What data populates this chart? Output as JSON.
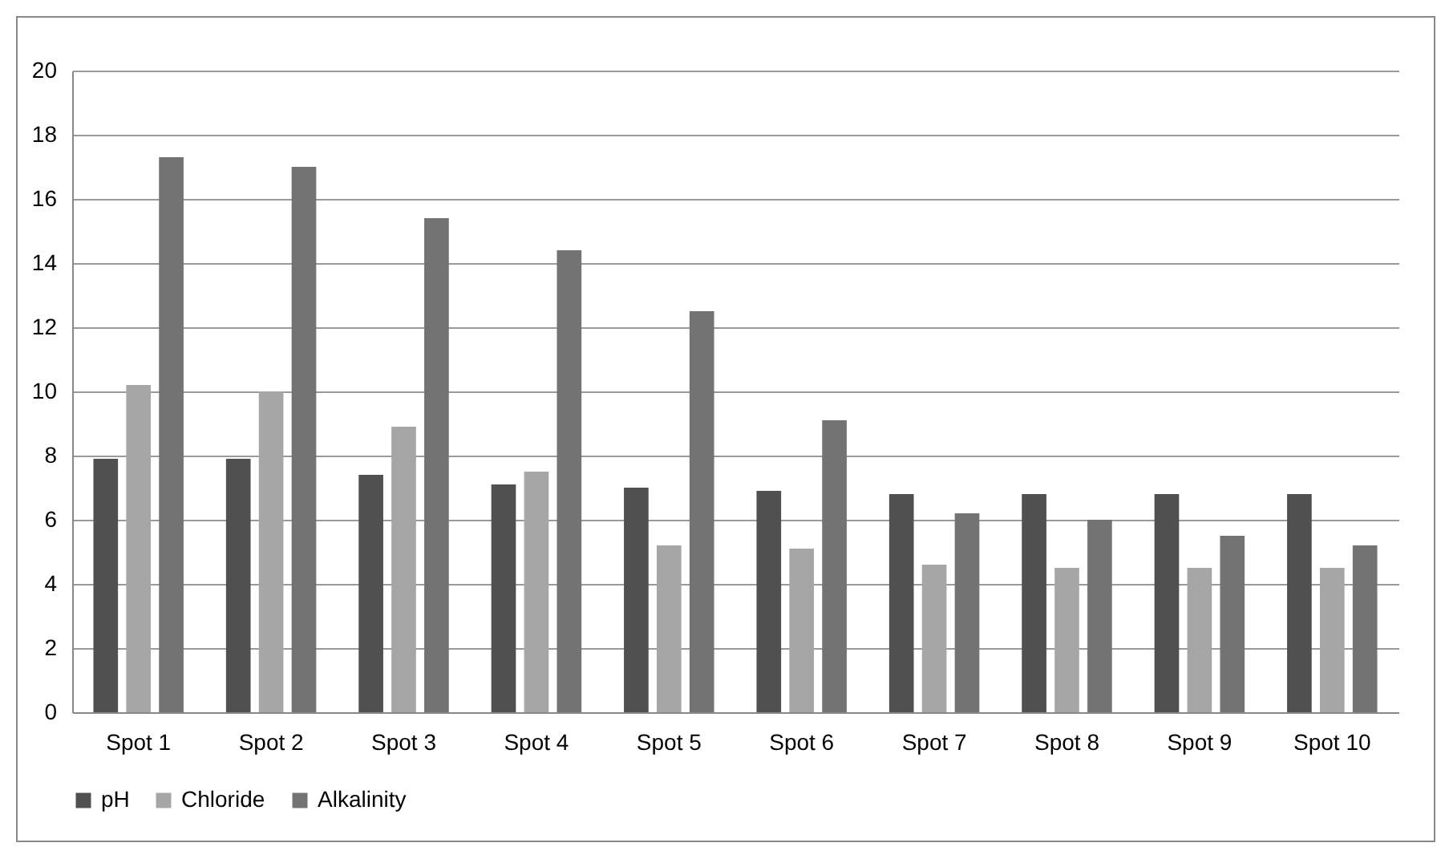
{
  "chart_data": {
    "type": "bar",
    "categories": [
      "Spot 1",
      "Spot 2",
      "Spot 3",
      "Spot 4",
      "Spot 5",
      "Spot 6",
      "Spot 7",
      "Spot 8",
      "Spot 9",
      "Spot 10"
    ],
    "series": [
      {
        "name": "pH",
        "color": "#505050",
        "values": [
          7.9,
          7.9,
          7.4,
          7.1,
          7.0,
          6.9,
          6.8,
          6.8,
          6.8,
          6.8
        ]
      },
      {
        "name": "Chloride",
        "color": "#a6a6a6",
        "values": [
          10.2,
          10.0,
          8.9,
          7.5,
          5.2,
          5.1,
          4.6,
          4.5,
          4.5,
          4.5
        ]
      },
      {
        "name": "Alkalinity",
        "color": "#737373",
        "values": [
          17.3,
          17.0,
          15.4,
          14.4,
          12.5,
          9.1,
          6.2,
          6.0,
          5.5,
          5.2
        ]
      }
    ],
    "ylim": [
      0,
      20
    ],
    "yticks": [
      0,
      2,
      4,
      6,
      8,
      10,
      12,
      14,
      16,
      18,
      20
    ],
    "grid": "y",
    "legend": "bottom"
  }
}
